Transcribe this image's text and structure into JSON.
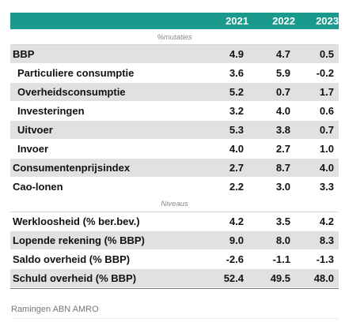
{
  "header": {
    "years": [
      "2021",
      "2022",
      "2023"
    ]
  },
  "section_mutaties": "%mutaties",
  "section_niveaus": "Niveaus",
  "rows_a": [
    {
      "label": "BBP",
      "values": [
        "4.9",
        "4.7",
        "0.5"
      ]
    },
    {
      "label": "Particuliere consumptie",
      "values": [
        "3.6",
        "5.9",
        "-0.2"
      ]
    },
    {
      "label": "Overheidsconsumptie",
      "values": [
        "5.2",
        "0.7",
        "1.7"
      ]
    },
    {
      "label": "Investeringen",
      "values": [
        "3.2",
        "4.0",
        "0.6"
      ]
    },
    {
      "label": "Uitvoer",
      "values": [
        "5.3",
        "3.8",
        "0.7"
      ]
    },
    {
      "label": "Invoer",
      "values": [
        "4.0",
        "2.7",
        "1.0"
      ]
    },
    {
      "label": "Consumentenprijsindex",
      "values": [
        "2.7",
        "8.7",
        "4.0"
      ]
    },
    {
      "label": "Cao-lonen",
      "values": [
        "2.2",
        "3.0",
        "3.3"
      ]
    }
  ],
  "rows_b": [
    {
      "label": "Werkloosheid (% ber.bev.)",
      "values": [
        "4.2",
        "3.5",
        "4.2"
      ]
    },
    {
      "label": "Lopende rekening (% BBP)",
      "values": [
        "9.0",
        "8.0",
        "8.3"
      ]
    },
    {
      "label": "Saldo overheid (% BBP)",
      "values": [
        "-2.6",
        "-1.1",
        "-1.3"
      ]
    },
    {
      "label": "Schuld overheid (% BBP)",
      "values": [
        "52.4",
        "49.5",
        "48.0"
      ]
    }
  ],
  "source": "Ramingen ABN AMRO"
}
